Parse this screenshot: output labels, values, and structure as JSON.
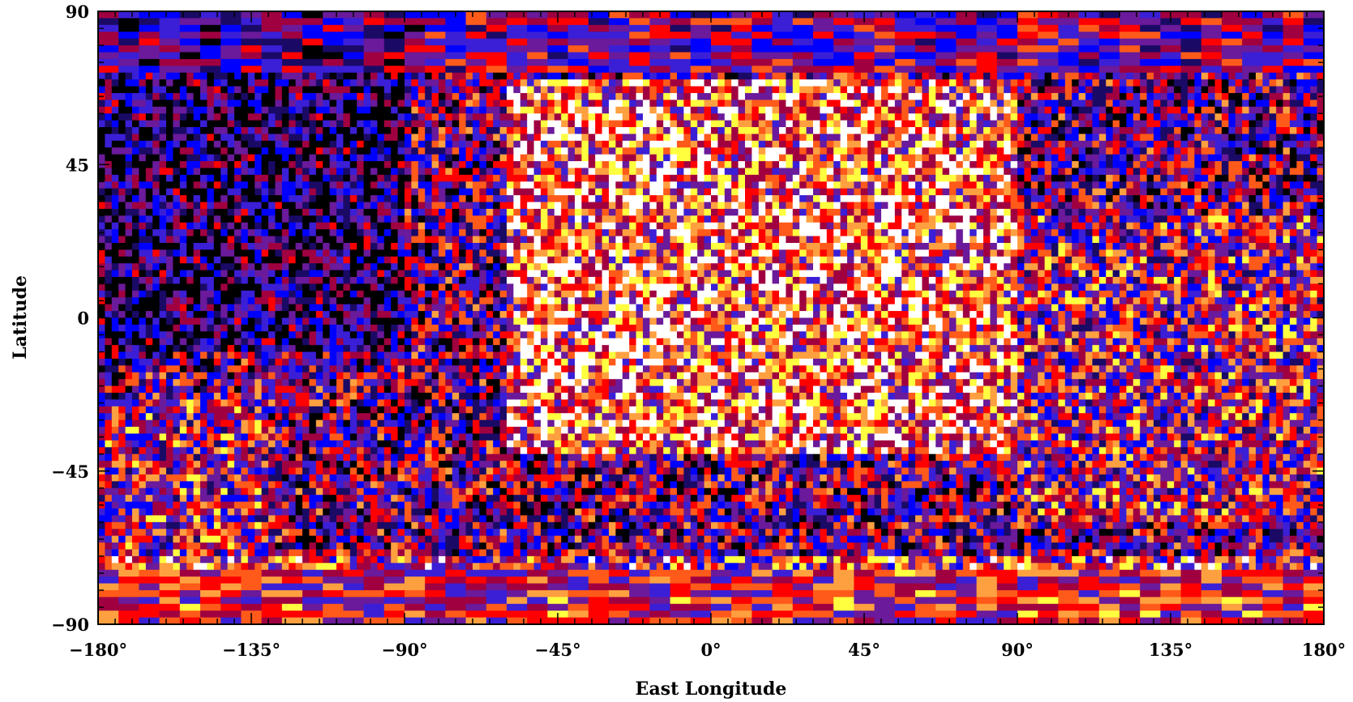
{
  "chart_data": {
    "type": "heatmap",
    "title": "",
    "xlabel": "East Longitude",
    "ylabel": "Latitude",
    "xlim": [
      -180,
      180
    ],
    "ylim": [
      -90,
      90
    ],
    "x_ticks": [
      {
        "value": -180,
        "label": "−180°"
      },
      {
        "value": -135,
        "label": "−135°"
      },
      {
        "value": -90,
        "label": "−90°"
      },
      {
        "value": -45,
        "label": "−45°"
      },
      {
        "value": 0,
        "label": "0°"
      },
      {
        "value": 45,
        "label": "45°"
      },
      {
        "value": 90,
        "label": "90°"
      },
      {
        "value": 135,
        "label": "135°"
      },
      {
        "value": 180,
        "label": "180°"
      }
    ],
    "y_ticks": [
      {
        "value": 90,
        "label": "90"
      },
      {
        "value": 45,
        "label": "45"
      },
      {
        "value": 0,
        "label": "0"
      },
      {
        "value": -45,
        "label": "−45"
      },
      {
        "value": -90,
        "label": "−90"
      }
    ],
    "grid": false,
    "legend": "none",
    "cell_size_deg": 2,
    "colormap": [
      "#000000",
      "#1a0a66",
      "#0000ff",
      "#3a1fd6",
      "#6a1a9a",
      "#a00040",
      "#ff0000",
      "#ff5a1a",
      "#ffa040",
      "#ffff40",
      "#ffffff"
    ],
    "intensity_regions": [
      {
        "lon_range": [
          -60,
          90
        ],
        "lat_range": [
          -40,
          70
        ],
        "level": "high"
      },
      {
        "lon_range": [
          -180,
          -90
        ],
        "lat_range": [
          -10,
          90
        ],
        "level": "low"
      },
      {
        "lon_range": [
          -180,
          -130
        ],
        "lat_range": [
          -75,
          -25
        ],
        "level": "medium"
      },
      {
        "lon_range": [
          -180,
          180
        ],
        "lat_range": [
          -90,
          -70
        ],
        "level": "medium-banded"
      },
      {
        "lon_range": [
          -180,
          180
        ],
        "lat_range": [
          75,
          90
        ],
        "level": "low-banded"
      },
      {
        "lon_range": [
          90,
          180
        ],
        "lat_range": [
          -60,
          30
        ],
        "level": "medium"
      }
    ]
  }
}
